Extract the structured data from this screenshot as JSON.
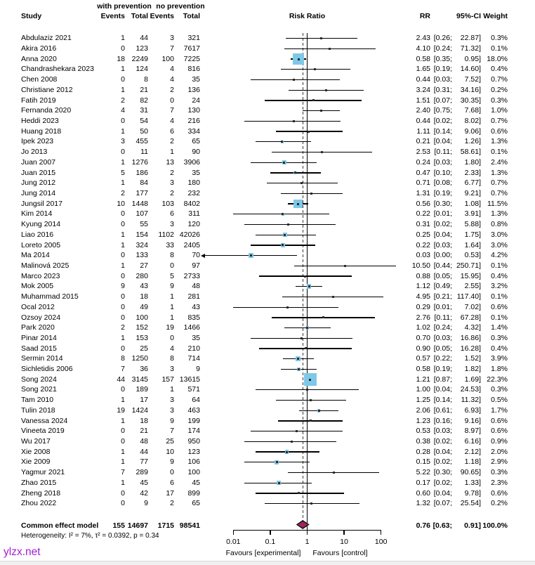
{
  "chart_data": {
    "type": "forest",
    "effect_label": "Risk Ratio",
    "header": {
      "study": "Study",
      "group1": "with prevention",
      "group2": "no prevention",
      "events": "Events",
      "total": "Total",
      "rr": "RR",
      "ci": "95%-CI",
      "weight": "Weight"
    },
    "studies": [
      {
        "study": "Abdulaziz 2021",
        "e1": "1",
        "n1": "44",
        "e2": "3",
        "n2": "321",
        "rr": "2.43",
        "lo": "0.26",
        "hi": "22.87",
        "w": "0.3%"
      },
      {
        "study": "Akira 2016",
        "e1": "0",
        "n1": "123",
        "e2": "7",
        "n2": "7617",
        "rr": "4.10",
        "lo": "0.24",
        "hi": "71.32",
        "w": "0.1%"
      },
      {
        "study": "Anna 2020",
        "e1": "18",
        "n1": "2249",
        "e2": "100",
        "n2": "7225",
        "rr": "0.58",
        "lo": "0.35",
        "hi": "0.95",
        "w": "18.0%"
      },
      {
        "study": "Chandrashekara 2023",
        "e1": "1",
        "n1": "124",
        "e2": "4",
        "n2": "816",
        "rr": "1.65",
        "lo": "0.19",
        "hi": "14.60",
        "w": "0.4%"
      },
      {
        "study": "Chen 2008",
        "e1": "0",
        "n1": "8",
        "e2": "4",
        "n2": "35",
        "rr": "0.44",
        "lo": "0.03",
        "hi": "7.52",
        "w": "0.7%"
      },
      {
        "study": "Christiane 2012",
        "e1": "1",
        "n1": "21",
        "e2": "2",
        "n2": "136",
        "rr": "3.24",
        "lo": "0.31",
        "hi": "34.16",
        "w": "0.2%"
      },
      {
        "study": "Fatih 2019",
        "e1": "2",
        "n1": "82",
        "e2": "0",
        "n2": "24",
        "rr": "1.51",
        "lo": "0.07",
        "hi": "30.35",
        "w": "0.3%"
      },
      {
        "study": "Fernanda 2020",
        "e1": "4",
        "n1": "31",
        "e2": "7",
        "n2": "130",
        "rr": "2.40",
        "lo": "0.75",
        "hi": "7.68",
        "w": "1.0%"
      },
      {
        "study": "Heddi 2023",
        "e1": "0",
        "n1": "54",
        "e2": "4",
        "n2": "216",
        "rr": "0.44",
        "lo": "0.02",
        "hi": "8.02",
        "w": "0.7%"
      },
      {
        "study": "Huang 2018",
        "e1": "1",
        "n1": "50",
        "e2": "6",
        "n2": "334",
        "rr": "1.11",
        "lo": "0.14",
        "hi": "9.06",
        "w": "0.6%"
      },
      {
        "study": "Ipek 2023",
        "e1": "3",
        "n1": "455",
        "e2": "2",
        "n2": "65",
        "rr": "0.21",
        "lo": "0.04",
        "hi": "1.26",
        "w": "1.3%"
      },
      {
        "study": "Jo 2013",
        "e1": "0",
        "n1": "11",
        "e2": "1",
        "n2": "90",
        "rr": "2.53",
        "lo": "0.11",
        "hi": "58.61",
        "w": "0.1%"
      },
      {
        "study": "Juan 2007",
        "e1": "1",
        "n1": "1276",
        "e2": "13",
        "n2": "3906",
        "rr": "0.24",
        "lo": "0.03",
        "hi": "1.80",
        "w": "2.4%"
      },
      {
        "study": "Juan 2015",
        "e1": "5",
        "n1": "186",
        "e2": "2",
        "n2": "35",
        "rr": "0.47",
        "lo": "0.10",
        "hi": "2.33",
        "w": "1.3%"
      },
      {
        "study": "Jung 2012",
        "e1": "1",
        "n1": "84",
        "e2": "3",
        "n2": "180",
        "rr": "0.71",
        "lo": "0.08",
        "hi": "6.77",
        "w": "0.7%"
      },
      {
        "study": "Jung 2014",
        "e1": "2",
        "n1": "177",
        "e2": "2",
        "n2": "232",
        "rr": "1.31",
        "lo": "0.19",
        "hi": "9.21",
        "w": "0.7%"
      },
      {
        "study": "Jungsil 2017",
        "e1": "10",
        "n1": "1448",
        "e2": "103",
        "n2": "8402",
        "rr": "0.56",
        "lo": "0.30",
        "hi": "1.08",
        "w": "11.5%"
      },
      {
        "study": "Kim 2014",
        "e1": "0",
        "n1": "107",
        "e2": "6",
        "n2": "311",
        "rr": "0.22",
        "lo": "0.01",
        "hi": "3.91",
        "w": "1.3%"
      },
      {
        "study": "Kyung 2014",
        "e1": "0",
        "n1": "55",
        "e2": "3",
        "n2": "120",
        "rr": "0.31",
        "lo": "0.02",
        "hi": "5.88",
        "w": "0.8%"
      },
      {
        "study": "Liao 2016",
        "e1": "1",
        "n1": "154",
        "e2": "1102",
        "n2": "42026",
        "rr": "0.25",
        "lo": "0.04",
        "hi": "1.75",
        "w": "3.0%"
      },
      {
        "study": "Loreto 2005",
        "e1": "1",
        "n1": "324",
        "e2": "33",
        "n2": "2405",
        "rr": "0.22",
        "lo": "0.03",
        "hi": "1.64",
        "w": "3.0%"
      },
      {
        "study": "Ma 2014",
        "e1": "0",
        "n1": "133",
        "e2": "8",
        "n2": "70",
        "rr": "0.03",
        "lo": "0.00",
        "hi": "0.53",
        "w": "4.2%"
      },
      {
        "study": "Malinová 2025",
        "e1": "1",
        "n1": "27",
        "e2": "0",
        "n2": "97",
        "rr": "10.50",
        "lo": "0.44",
        "hi": "250.71",
        "w": "0.1%"
      },
      {
        "study": "Marco 2023",
        "e1": "0",
        "n1": "280",
        "e2": "5",
        "n2": "2733",
        "rr": "0.88",
        "lo": "0.05",
        "hi": "15.95",
        "w": "0.4%"
      },
      {
        "study": "Mok 2005",
        "e1": "9",
        "n1": "43",
        "e2": "9",
        "n2": "48",
        "rr": "1.12",
        "lo": "0.49",
        "hi": "2.55",
        "w": "3.2%"
      },
      {
        "study": "Muhammad 2015",
        "e1": "0",
        "n1": "18",
        "e2": "1",
        "n2": "281",
        "rr": "4.95",
        "lo": "0.21",
        "hi": "117.40",
        "w": "0.1%"
      },
      {
        "study": "Ocal 2012",
        "e1": "0",
        "n1": "49",
        "e2": "1",
        "n2": "43",
        "rr": "0.29",
        "lo": "0.01",
        "hi": "7.02",
        "w": "0.6%"
      },
      {
        "study": "Ozsoy 2024",
        "e1": "0",
        "n1": "100",
        "e2": "1",
        "n2": "835",
        "rr": "2.76",
        "lo": "0.11",
        "hi": "67.28",
        "w": "0.1%"
      },
      {
        "study": "Park 2020",
        "e1": "2",
        "n1": "152",
        "e2": "19",
        "n2": "1466",
        "rr": "1.02",
        "lo": "0.24",
        "hi": "4.32",
        "w": "1.4%"
      },
      {
        "study": "Pinar 2014",
        "e1": "1",
        "n1": "153",
        "e2": "0",
        "n2": "35",
        "rr": "0.70",
        "lo": "0.03",
        "hi": "16.86",
        "w": "0.3%"
      },
      {
        "study": "Saad 2015",
        "e1": "0",
        "n1": "25",
        "e2": "4",
        "n2": "210",
        "rr": "0.90",
        "lo": "0.05",
        "hi": "16.28",
        "w": "0.4%"
      },
      {
        "study": "Sermin 2014",
        "e1": "8",
        "n1": "1250",
        "e2": "8",
        "n2": "714",
        "rr": "0.57",
        "lo": "0.22",
        "hi": "1.52",
        "w": "3.9%"
      },
      {
        "study": "Sichletidis 2006",
        "e1": "7",
        "n1": "36",
        "e2": "3",
        "n2": "9",
        "rr": "0.58",
        "lo": "0.19",
        "hi": "1.82",
        "w": "1.8%"
      },
      {
        "study": "Song 2024",
        "e1": "44",
        "n1": "3145",
        "e2": "157",
        "n2": "13615",
        "rr": "1.21",
        "lo": "0.87",
        "hi": "1.69",
        "w": "22.3%"
      },
      {
        "study": "Song 2021",
        "e1": "0",
        "n1": "189",
        "e2": "1",
        "n2": "571",
        "rr": "1.00",
        "lo": "0.04",
        "hi": "24.53",
        "w": "0.3%"
      },
      {
        "study": "Tam 2010",
        "e1": "1",
        "n1": "17",
        "e2": "3",
        "n2": "64",
        "rr": "1.25",
        "lo": "0.14",
        "hi": "11.32",
        "w": "0.5%"
      },
      {
        "study": "Tulin 2018",
        "e1": "19",
        "n1": "1424",
        "e2": "3",
        "n2": "463",
        "rr": "2.06",
        "lo": "0.61",
        "hi": "6.93",
        "w": "1.7%"
      },
      {
        "study": "Vanessa 2024",
        "e1": "1",
        "n1": "18",
        "e2": "9",
        "n2": "199",
        "rr": "1.23",
        "lo": "0.16",
        "hi": "9.16",
        "w": "0.6%"
      },
      {
        "study": "Vineeta 2019",
        "e1": "0",
        "n1": "21",
        "e2": "7",
        "n2": "174",
        "rr": "0.53",
        "lo": "0.03",
        "hi": "8.97",
        "w": "0.6%"
      },
      {
        "study": "Wu 2017",
        "e1": "0",
        "n1": "48",
        "e2": "25",
        "n2": "950",
        "rr": "0.38",
        "lo": "0.02",
        "hi": "6.16",
        "w": "0.9%"
      },
      {
        "study": "Xie 2008",
        "e1": "1",
        "n1": "44",
        "e2": "10",
        "n2": "123",
        "rr": "0.28",
        "lo": "0.04",
        "hi": "2.12",
        "w": "2.0%"
      },
      {
        "study": "Xie 2009",
        "e1": "1",
        "n1": "77",
        "e2": "9",
        "n2": "106",
        "rr": "0.15",
        "lo": "0.02",
        "hi": "1.18",
        "w": "2.9%"
      },
      {
        "study": "Yagmur 2021",
        "e1": "7",
        "n1": "289",
        "e2": "0",
        "n2": "100",
        "rr": "5.22",
        "lo": "0.30",
        "hi": "90.65",
        "w": "0.3%"
      },
      {
        "study": "Zhao 2015",
        "e1": "1",
        "n1": "45",
        "e2": "6",
        "n2": "45",
        "rr": "0.17",
        "lo": "0.02",
        "hi": "1.33",
        "w": "2.3%"
      },
      {
        "study": "Zheng 2018",
        "e1": "0",
        "n1": "42",
        "e2": "17",
        "n2": "899",
        "rr": "0.60",
        "lo": "0.04",
        "hi": "9.78",
        "w": "0.6%"
      },
      {
        "study": "Zhou 2022",
        "e1": "0",
        "n1": "9",
        "e2": "2",
        "n2": "65",
        "rr": "1.32",
        "lo": "0.07",
        "hi": "25.54",
        "w": "0.2%"
      }
    ],
    "summary": {
      "label": "Common effect model",
      "e1": "155",
      "n1": "14697",
      "e2": "1715",
      "n2": "98541",
      "rr": "0.76",
      "lo": "0.63",
      "hi": "0.91",
      "w": "100.0%"
    },
    "heterogeneity": "Heterogeneity: I² = 7%, τ² = 0.0392, p = 0.34",
    "axis": {
      "scale": "log",
      "ticks": [
        "0.01",
        "0.1",
        "1",
        "10",
        "100"
      ],
      "ref_line": "1",
      "summary_estimate": "0.76",
      "left_label": "Favours [experimental]",
      "right_label": "Favours [control]"
    },
    "watermark": "ylzx.net",
    "colors": {
      "square": "#7ec8e8",
      "marker": "#2a2a2a",
      "diamond": "#9e255c",
      "line": "#000000",
      "watermark": "#a31fd1"
    }
  }
}
